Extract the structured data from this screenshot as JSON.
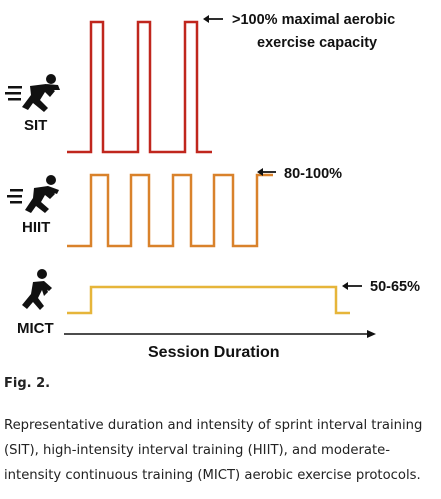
{
  "figure": {
    "rows": [
      {
        "label": "SIT",
        "annotation_line1": ">100% maximal aerobic",
        "annotation_line2": "exercise capacity",
        "color": "#C0261D",
        "bouts": 3
      },
      {
        "label": "HIIT",
        "annotation_line1": "80-100%",
        "color": "#D9822B",
        "bouts": 5
      },
      {
        "label": "MICT",
        "annotation_line1": "50-65%",
        "color": "#E6B53A",
        "bouts": 1
      }
    ],
    "x_axis_label": "Session Duration",
    "icon_colors": {
      "figure": "#111111"
    }
  },
  "caption": {
    "title": "Fig. 2.",
    "text": "Representative duration and intensity of sprint interval training (SIT), high-intensity interval training (HIIT), and moderate-intensity continuous training (MICT) aerobic exercise protocols."
  }
}
